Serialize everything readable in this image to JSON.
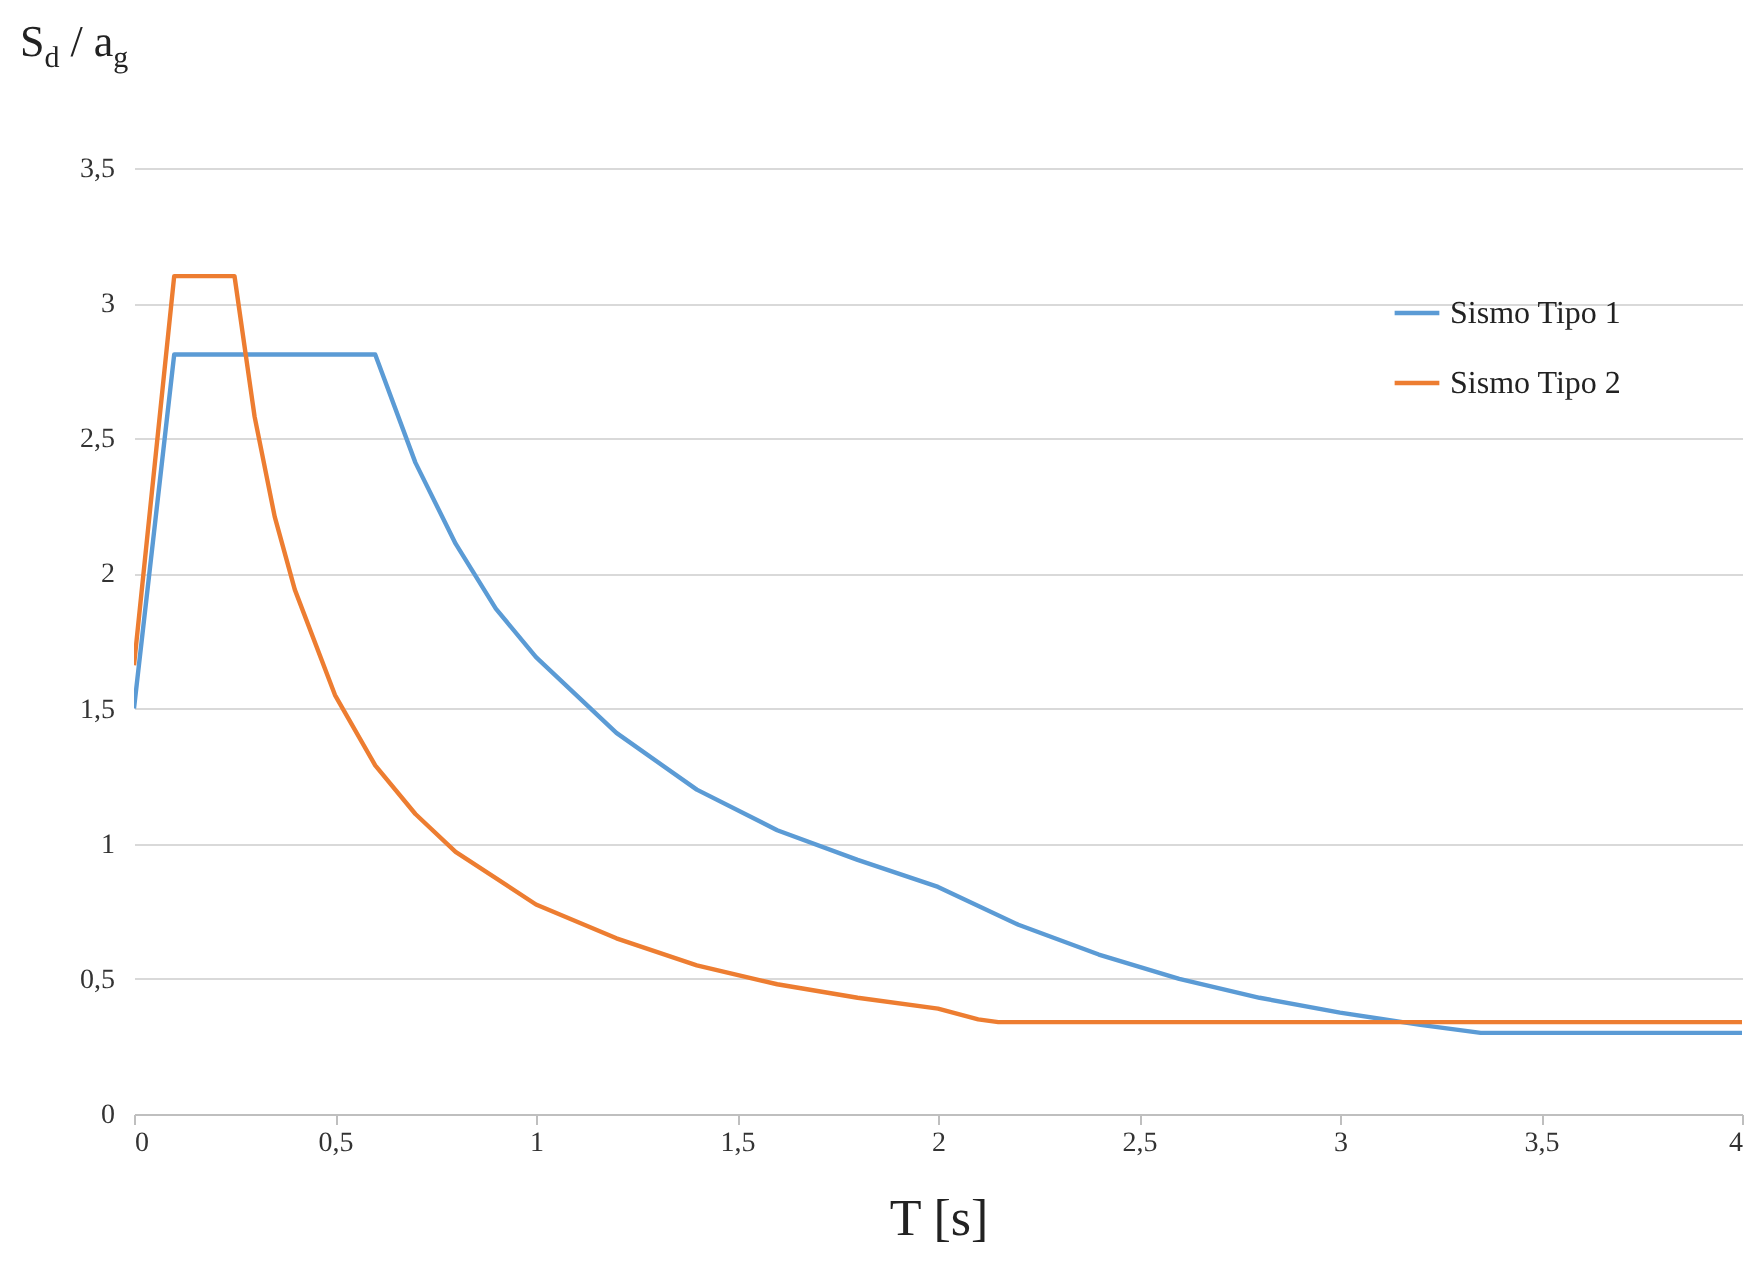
{
  "chart_data": {
    "type": "line",
    "xlabel": "T [s]",
    "ylabel": "S$_{d}$ / a$_{g}$",
    "xlim": [
      0,
      4
    ],
    "ylim": [
      0,
      3.5
    ],
    "xticks": [
      0,
      {
        "value": 0.5,
        "label": "0,5"
      },
      1,
      {
        "value": 1.5,
        "label": "1,5"
      },
      2,
      {
        "value": 2.5,
        "label": "2,5"
      },
      3,
      {
        "value": 3.5,
        "label": "3,5"
      },
      4
    ],
    "yticks": [
      0,
      {
        "value": 0.5,
        "label": "0,5"
      },
      1,
      {
        "value": 1.5,
        "label": "1,5"
      },
      2,
      {
        "value": 2.5,
        "label": "2,5"
      },
      3,
      {
        "value": 3.5,
        "label": "3,5"
      }
    ],
    "grid": "y",
    "legend": "top right",
    "marker": "none",
    "line_style": "solid",
    "series": [
      {
        "name": "Sismo Tipo 1",
        "color": "#5b9bd5",
        "x": [
          0,
          0.1,
          0.6,
          0.7,
          0.8,
          0.9,
          1,
          1.2,
          1.4,
          1.6,
          1.8,
          2,
          2.2,
          2.4,
          2.6,
          2.8,
          3,
          3.2,
          3.35,
          4
        ],
        "values": [
          1.5,
          2.81,
          2.81,
          2.41,
          2.11,
          1.87,
          1.69,
          1.41,
          1.2,
          1.05,
          0.94,
          0.84,
          0.7,
          0.59,
          0.5,
          0.43,
          0.375,
          0.33,
          0.3,
          0.3
        ]
      },
      {
        "name": "Sismo Tipo 2",
        "color": "#ed7d31",
        "x": [
          0,
          0.1,
          0.25,
          0.3,
          0.35,
          0.4,
          0.5,
          0.6,
          0.7,
          0.8,
          1,
          1.2,
          1.4,
          1.6,
          1.8,
          2,
          2.1,
          2.15,
          4
        ],
        "values": [
          1.66,
          3.1,
          3.1,
          2.58,
          2.21,
          1.94,
          1.55,
          1.29,
          1.11,
          0.97,
          0.775,
          0.65,
          0.55,
          0.48,
          0.43,
          0.39,
          0.35,
          0.34,
          0.34
        ]
      }
    ]
  }
}
